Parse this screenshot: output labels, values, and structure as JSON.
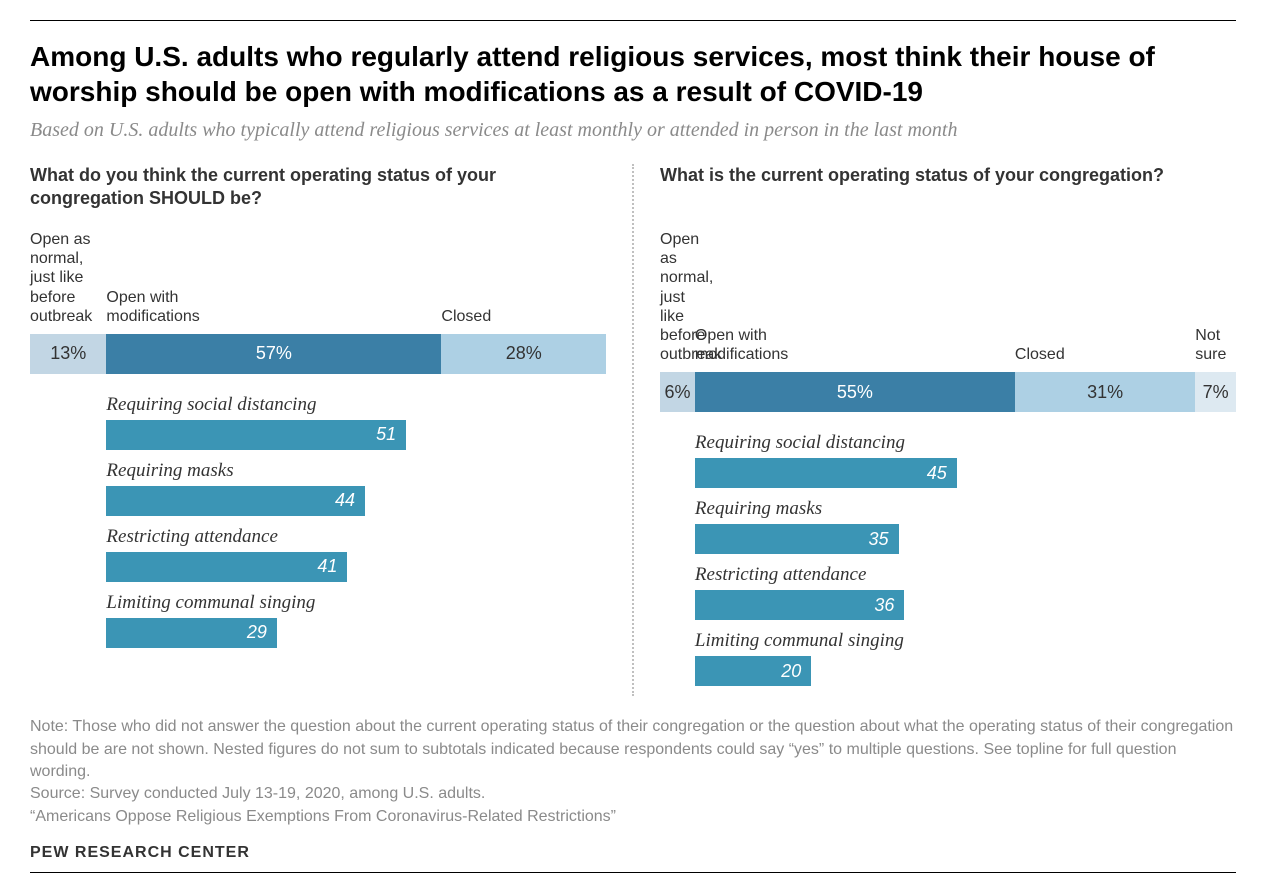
{
  "colors": {
    "segLight": "#c2d6e4",
    "segDark": "#3b7fa6",
    "segMed": "#add0e4",
    "segPale": "#dde9f1",
    "subBar": "#3b95b5",
    "textGrey": "#8a8a8a",
    "textDark": "#333333"
  },
  "title": "Among U.S. adults who regularly attend religious services, most think their house of worship should be open with modifications as a result of COVID-19",
  "subtitle": "Based on U.S. adults who typically attend religious services at least monthly or attended in person in the last month",
  "left": {
    "question": "What do you think the current operating status of your congregation SHOULD be?",
    "categories": [
      {
        "label": "Open as normal,\njust like before outbreak",
        "value": 13,
        "display": "13%",
        "color": "segLight",
        "textClass": "light"
      },
      {
        "label": "Open with\nmodifications",
        "value": 57,
        "display": "57%",
        "color": "segDark",
        "textClass": ""
      },
      {
        "label": "Closed",
        "value": 28,
        "display": "28%",
        "color": "segMed",
        "textClass": "light"
      }
    ],
    "subScaleMax": 57,
    "subs": [
      {
        "label": "Requiring social distancing",
        "value": 51
      },
      {
        "label": "Requiring masks",
        "value": 44
      },
      {
        "label": "Restricting attendance",
        "value": 41
      },
      {
        "label": "Limiting communal singing",
        "value": 29
      }
    ]
  },
  "right": {
    "question": "What is the current operating status of your congregation?",
    "categories": [
      {
        "label": "Open as normal,\njust like before outbreak",
        "value": 6,
        "display": "6%",
        "color": "segLight",
        "textClass": "light"
      },
      {
        "label": "Open with\nmodifications",
        "value": 55,
        "display": "55%",
        "color": "segDark",
        "textClass": ""
      },
      {
        "label": "Closed",
        "value": 31,
        "display": "31%",
        "color": "segMed",
        "textClass": "light"
      },
      {
        "label": "Not\nsure",
        "value": 7,
        "display": "7%",
        "color": "segPale",
        "textClass": "light"
      }
    ],
    "subScaleMax": 55,
    "subs": [
      {
        "label": "Requiring social distancing",
        "value": 45
      },
      {
        "label": "Requiring masks",
        "value": 35
      },
      {
        "label": "Restricting attendance",
        "value": 36
      },
      {
        "label": "Limiting communal singing",
        "value": 20
      }
    ]
  },
  "note": "Note: Those who did not answer the question about the current operating status of their congregation or the question about what the operating status of their congregation should be are not shown. Nested figures do not sum to subtotals indicated because respondents could say “yes” to multiple questions. See topline for full question wording.",
  "source": "Source: Survey conducted July 13-19, 2020, among U.S. adults.",
  "reportTitle": "“Americans Oppose Religious Exemptions From Coronavirus-Related Restrictions”",
  "brand": "PEW RESEARCH CENTER",
  "layout": {
    "subIndentPx": 80,
    "stackBarHeightPx": 40,
    "subBarHeightPx": 30
  }
}
